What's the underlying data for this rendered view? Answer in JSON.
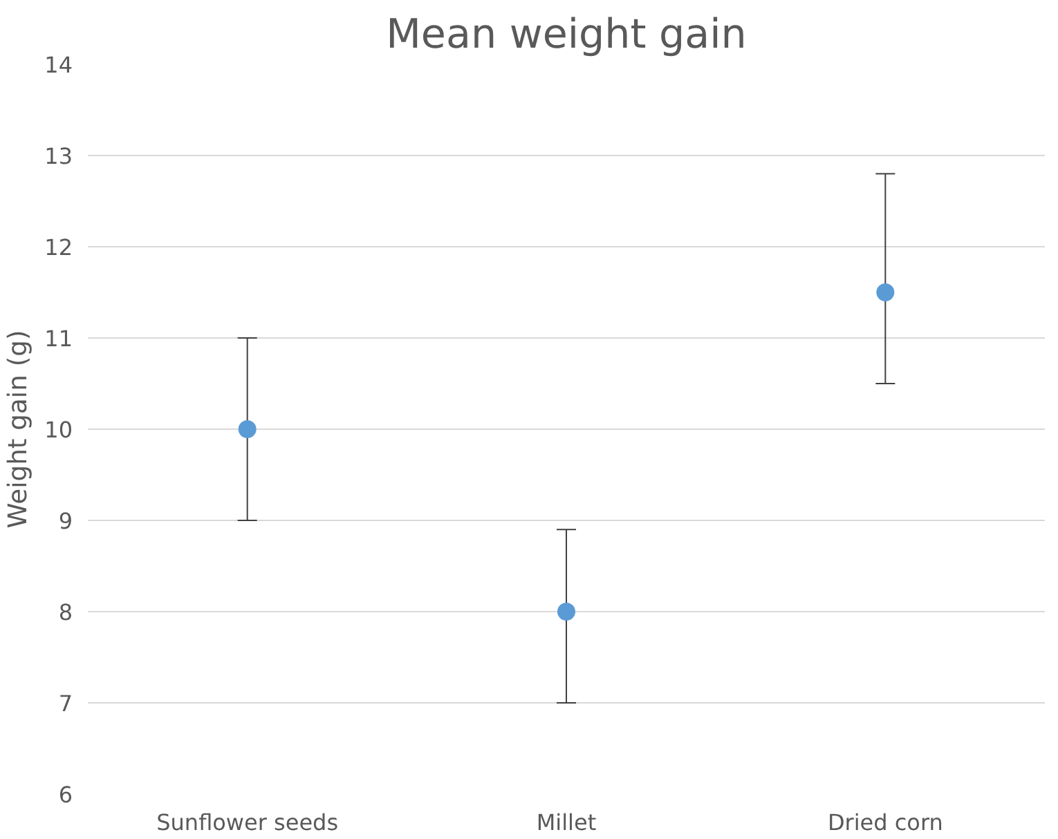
{
  "chart_data": {
    "type": "scatter",
    "title": "Mean weight gain",
    "ylabel": "Weight gain (g)",
    "categories": [
      "Sunflower seeds",
      "Millet",
      "Dried corn"
    ],
    "series": [
      {
        "color": "#5b9bd5",
        "values": [
          10,
          8,
          11.5
        ],
        "errors": [
          [
            9,
            11
          ],
          [
            7,
            8.9
          ],
          [
            10.5,
            12.8
          ]
        ]
      }
    ],
    "ylim": [
      6,
      14
    ],
    "yticks": [
      6,
      7,
      8,
      9,
      10,
      11,
      12,
      13,
      14
    ],
    "grid": "y",
    "marker": "circle"
  }
}
